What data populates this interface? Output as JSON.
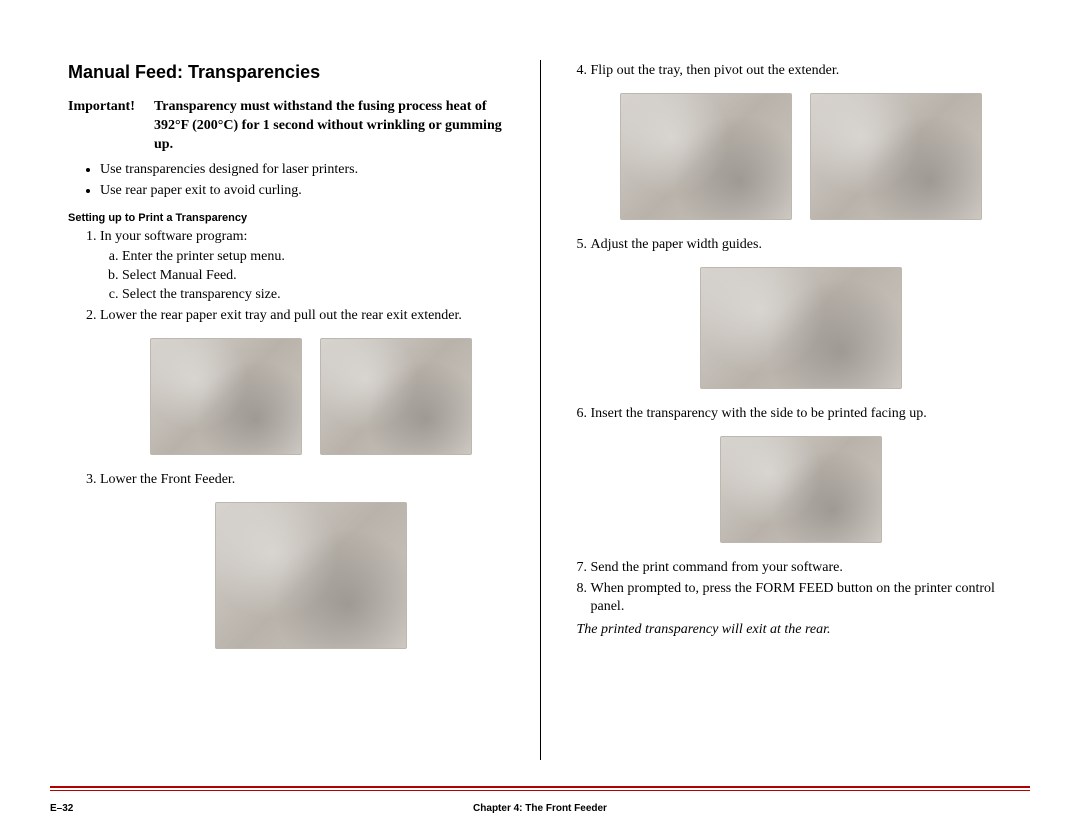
{
  "title": "Manual Feed: Transparencies",
  "important": {
    "label": "Important!",
    "text": "Transparency must withstand the fusing process heat of 392°F (200°C) for 1 second without wrinkling or gumming up."
  },
  "bullets": [
    "Use transparencies designed for laser printers.",
    "Use rear paper exit to avoid curling."
  ],
  "subhead": "Setting up to Print a Transparency",
  "left_steps": {
    "s1": "In your software program:",
    "s1a": "Enter the printer setup menu.",
    "s1b": "Select Manual Feed.",
    "s1c": "Select the transparency size.",
    "s2": "Lower the rear paper exit tray and pull out the rear exit extender.",
    "s3": "Lower the Front Feeder."
  },
  "right_steps": {
    "s4": "Flip out the tray, then pivot out the extender.",
    "s5": "Adjust the paper width guides.",
    "s6": "Insert the transparency with the side to be printed facing up.",
    "s7": "Send the print command from your software.",
    "s8": "When prompted to, press the FORM FEED button on the printer control panel."
  },
  "note_italic": "The printed transparency will exit at the rear.",
  "footer": {
    "left": "E–32",
    "center": "Chapter 4: The Front Feeder"
  },
  "colors": {
    "rule": "#b30000",
    "text": "#000000",
    "background": "#ffffff"
  }
}
